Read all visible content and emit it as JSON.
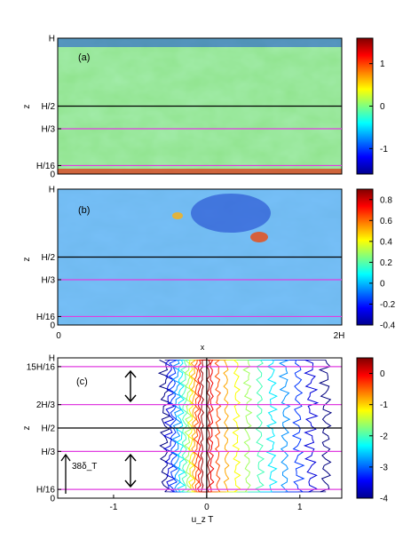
{
  "chart_data": [
    {
      "type": "heatmap",
      "panel_label": "(a)",
      "xlabel": "",
      "ylabel": "z",
      "y_ticks": [
        "H",
        "H/2",
        "H/3",
        "H/16",
        "0"
      ],
      "y_tick_values": [
        1,
        0.5,
        0.3333,
        0.0625,
        0
      ],
      "x_ticks": [],
      "colorbar": {
        "ticks": [
          "1",
          "0",
          "-1"
        ],
        "tick_values": [
          1,
          0,
          -1
        ],
        "range": [
          -1.6,
          1.6
        ]
      },
      "guide_lines": [
        {
          "z": 0.5,
          "color": "#000000"
        },
        {
          "z": 0.3333,
          "color": "#e03de0"
        },
        {
          "z": 0.0625,
          "color": "#e03de0"
        }
      ]
    },
    {
      "type": "heatmap",
      "panel_label": "(b)",
      "xlabel": "x",
      "ylabel": "z",
      "y_ticks": [
        "H",
        "H/2",
        "H/3",
        "H/16",
        "0"
      ],
      "y_tick_values": [
        1,
        0.5,
        0.3333,
        0.0625,
        0
      ],
      "x_ticks": [
        "0",
        "2H"
      ],
      "colorbar": {
        "ticks": [
          "0.8",
          "0.6",
          "0.4",
          "0.2",
          "0",
          "-0.2",
          "-0.4"
        ],
        "tick_values": [
          0.8,
          0.6,
          0.4,
          0.2,
          0,
          -0.2,
          -0.4
        ],
        "range": [
          -0.4,
          0.9
        ]
      },
      "guide_lines": [
        {
          "z": 0.5,
          "color": "#000000"
        },
        {
          "z": 0.3333,
          "color": "#e03de0"
        },
        {
          "z": 0.0625,
          "color": "#e03de0"
        }
      ]
    },
    {
      "type": "line",
      "panel_label": "(c)",
      "xlabel": "u_z T",
      "ylabel": "z",
      "xlim": [
        -1.6,
        1.45
      ],
      "x_ticks": [
        "-1",
        "0",
        "1"
      ],
      "x_tick_values": [
        -1,
        0,
        1
      ],
      "y_ticks": [
        "H",
        "15H/16",
        "2H/3",
        "H/2",
        "H/3",
        "H/16",
        "0"
      ],
      "y_tick_values": [
        1,
        0.9375,
        0.6667,
        0.5,
        0.3333,
        0.0625,
        0
      ],
      "annotation": "38δ_T",
      "colorbar": {
        "ticks": [
          "0",
          "-1",
          "-2",
          "-3",
          "-4"
        ],
        "tick_values": [
          0,
          -1,
          -2,
          -3,
          -4
        ],
        "range": [
          -4,
          0.5
        ]
      },
      "contour_levels": [
        -4,
        -3.6,
        -3.2,
        -2.8,
        -2.4,
        -2.0,
        -1.6,
        -1.2,
        -0.8,
        -0.4,
        0,
        0.4
      ],
      "contour_left_x": [
        -0.45,
        -0.4,
        -0.36,
        -0.32,
        -0.28,
        -0.24,
        -0.2,
        -0.17,
        -0.14,
        -0.11,
        -0.08,
        -0.05
      ],
      "contour_right_x": [
        1.28,
        1.12,
        0.98,
        0.84,
        0.7,
        0.57,
        0.44,
        0.32,
        0.21,
        0.12,
        0.05,
        0.02
      ],
      "guide_lines": [
        {
          "z": 0.9375,
          "color": "#e03de0"
        },
        {
          "z": 0.6667,
          "color": "#e03de0"
        },
        {
          "z": 0.5,
          "color": "#000000"
        },
        {
          "z": 0.3333,
          "color": "#e03de0"
        },
        {
          "z": 0.0625,
          "color": "#e03de0"
        }
      ],
      "vertical_lines": [
        {
          "x": 0,
          "color": "#000000"
        }
      ]
    }
  ]
}
